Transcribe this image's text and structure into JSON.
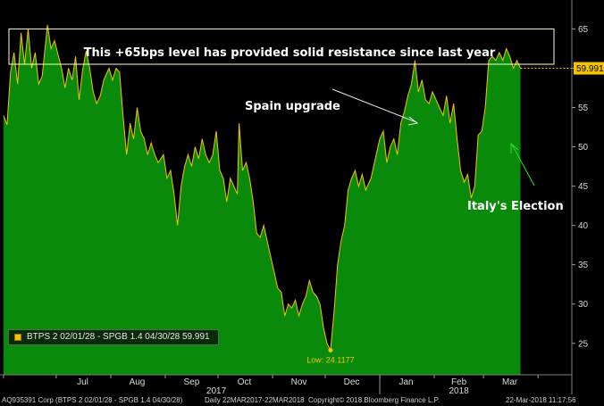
{
  "chart_data": {
    "type": "area",
    "series": [
      {
        "name": "BTPS 2 02/01/28 - SPGB 1.4 04/30/28",
        "last_value": "59.991",
        "color": "#f5c400",
        "fill": "#0a8a0a",
        "points": [
          [
            "2017-06-01",
            54
          ],
          [
            "2017-06-03",
            52.8
          ],
          [
            "2017-06-05",
            59.5
          ],
          [
            "2017-06-07",
            62
          ],
          [
            "2017-06-09",
            58
          ],
          [
            "2017-06-11",
            64.5
          ],
          [
            "2017-06-13",
            60.5
          ],
          [
            "2017-06-15",
            65
          ],
          [
            "2017-06-17",
            60
          ],
          [
            "2017-06-19",
            62
          ],
          [
            "2017-06-21",
            58
          ],
          [
            "2017-06-23",
            59
          ],
          [
            "2017-06-26",
            65.5
          ],
          [
            "2017-06-28",
            62.5
          ],
          [
            "2017-06-30",
            63.5
          ],
          [
            "2017-07-04",
            60
          ],
          [
            "2017-07-06",
            57.5
          ],
          [
            "2017-07-08",
            60
          ],
          [
            "2017-07-10",
            58.5
          ],
          [
            "2017-07-12",
            61.5
          ],
          [
            "2017-07-14",
            56
          ],
          [
            "2017-07-16",
            59.8
          ],
          [
            "2017-07-18",
            62.2
          ],
          [
            "2017-07-20",
            60
          ],
          [
            "2017-07-22",
            57
          ],
          [
            "2017-07-24",
            55.5
          ],
          [
            "2017-07-26",
            56.5
          ],
          [
            "2017-07-28",
            58.5
          ],
          [
            "2017-07-31",
            60
          ],
          [
            "2017-08-02",
            58.5
          ],
          [
            "2017-08-04",
            60
          ],
          [
            "2017-08-06",
            59.5
          ],
          [
            "2017-08-08",
            54
          ],
          [
            "2017-08-10",
            49
          ],
          [
            "2017-08-12",
            53
          ],
          [
            "2017-08-14",
            51
          ],
          [
            "2017-08-16",
            55
          ],
          [
            "2017-08-18",
            52
          ],
          [
            "2017-08-20",
            51
          ],
          [
            "2017-08-22",
            49
          ],
          [
            "2017-08-24",
            50.5
          ],
          [
            "2017-08-26",
            49
          ],
          [
            "2017-08-28",
            48
          ],
          [
            "2017-08-31",
            49
          ],
          [
            "2017-09-02",
            46
          ],
          [
            "2017-09-04",
            47
          ],
          [
            "2017-09-06",
            44
          ],
          [
            "2017-09-08",
            40
          ],
          [
            "2017-09-10",
            45
          ],
          [
            "2017-09-12",
            47.5
          ],
          [
            "2017-09-14",
            49
          ],
          [
            "2017-09-16",
            47.5
          ],
          [
            "2017-09-18",
            50
          ],
          [
            "2017-09-20",
            48.5
          ],
          [
            "2017-09-22",
            51
          ],
          [
            "2017-09-24",
            49
          ],
          [
            "2017-09-26",
            48
          ],
          [
            "2017-09-28",
            49
          ],
          [
            "2017-09-30",
            52
          ],
          [
            "2017-10-02",
            47
          ],
          [
            "2017-10-04",
            46
          ],
          [
            "2017-10-06",
            43
          ],
          [
            "2017-10-08",
            46
          ],
          [
            "2017-10-10",
            45
          ],
          [
            "2017-10-12",
            44
          ],
          [
            "2017-10-13",
            53
          ],
          [
            "2017-10-15",
            47
          ],
          [
            "2017-10-17",
            48
          ],
          [
            "2017-10-19",
            46
          ],
          [
            "2017-10-21",
            43
          ],
          [
            "2017-10-23",
            39
          ],
          [
            "2017-10-25",
            38.5
          ],
          [
            "2017-10-27",
            40
          ],
          [
            "2017-10-29",
            38
          ],
          [
            "2017-10-31",
            36
          ],
          [
            "2017-11-02",
            34
          ],
          [
            "2017-11-04",
            32
          ],
          [
            "2017-11-06",
            31.5
          ],
          [
            "2017-11-08",
            28.5
          ],
          [
            "2017-11-10",
            30
          ],
          [
            "2017-11-12",
            29.5
          ],
          [
            "2017-11-14",
            30.5
          ],
          [
            "2017-11-16",
            28.5
          ],
          [
            "2017-11-18",
            30
          ],
          [
            "2017-11-20",
            31
          ],
          [
            "2017-11-22",
            33
          ],
          [
            "2017-11-24",
            31.5
          ],
          [
            "2017-11-26",
            31
          ],
          [
            "2017-11-28",
            30
          ],
          [
            "2017-11-30",
            27
          ],
          [
            "2017-12-02",
            25
          ],
          [
            "2017-12-04",
            24.1177
          ],
          [
            "2017-12-06",
            29
          ],
          [
            "2017-12-08",
            35
          ],
          [
            "2017-12-10",
            38
          ],
          [
            "2017-12-12",
            40
          ],
          [
            "2017-12-14",
            44.5
          ],
          [
            "2017-12-16",
            46
          ],
          [
            "2017-12-18",
            47
          ],
          [
            "2017-12-20",
            45
          ],
          [
            "2017-12-22",
            46.5
          ],
          [
            "2017-12-24",
            44.5
          ],
          [
            "2017-12-27",
            46
          ],
          [
            "2017-12-29",
            48
          ],
          [
            "2018-01-01",
            51
          ],
          [
            "2018-01-03",
            52
          ],
          [
            "2018-01-05",
            48
          ],
          [
            "2018-01-07",
            50
          ],
          [
            "2018-01-09",
            51
          ],
          [
            "2018-01-11",
            49
          ],
          [
            "2018-01-13",
            53
          ],
          [
            "2018-01-15",
            54.5
          ],
          [
            "2018-01-17",
            56.5
          ],
          [
            "2018-01-19",
            58
          ],
          [
            "2018-01-21",
            61
          ],
          [
            "2018-01-23",
            57
          ],
          [
            "2018-01-25",
            58.5
          ],
          [
            "2018-01-27",
            56
          ],
          [
            "2018-01-29",
            55.5
          ],
          [
            "2018-01-31",
            57
          ],
          [
            "2018-02-02",
            56
          ],
          [
            "2018-02-04",
            55
          ],
          [
            "2018-02-06",
            54
          ],
          [
            "2018-02-08",
            56.5
          ],
          [
            "2018-02-10",
            53
          ],
          [
            "2018-02-12",
            55.5
          ],
          [
            "2018-02-14",
            51
          ],
          [
            "2018-02-16",
            47
          ],
          [
            "2018-02-18",
            45.5
          ],
          [
            "2018-02-20",
            46.5
          ],
          [
            "2018-02-22",
            43.5
          ],
          [
            "2018-02-24",
            45
          ],
          [
            "2018-02-26",
            51.5
          ],
          [
            "2018-02-28",
            52
          ],
          [
            "2018-03-02",
            55
          ],
          [
            "2018-03-04",
            61
          ],
          [
            "2018-03-06",
            61.5
          ],
          [
            "2018-03-08",
            61
          ],
          [
            "2018-03-10",
            62
          ],
          [
            "2018-03-12",
            61
          ],
          [
            "2018-03-14",
            62.5
          ],
          [
            "2018-03-16",
            61.5
          ],
          [
            "2018-03-18",
            60
          ],
          [
            "2018-03-20",
            61
          ],
          [
            "2018-03-22",
            59.991
          ]
        ]
      }
    ],
    "ylim": [
      21,
      68
    ],
    "yticks": [
      25,
      30,
      35,
      40,
      45,
      50,
      55,
      60,
      65
    ],
    "xlim": [
      "2017-05-30",
      "2018-04-05"
    ],
    "month_ticks": [
      [
        "Jul",
        "2017-07-16"
      ],
      [
        "Aug",
        "2017-08-16"
      ],
      [
        "Sep",
        "2017-09-16"
      ],
      [
        "Oct",
        "2017-10-16"
      ],
      [
        "Nov",
        "2017-11-16"
      ],
      [
        "Dec",
        "2017-12-16"
      ],
      [
        "Jan",
        "2018-01-16"
      ],
      [
        "Feb",
        "2018-02-15"
      ],
      [
        "Mar",
        "2018-03-16"
      ]
    ],
    "year_labels": [
      [
        "2017",
        "2017-09-30"
      ],
      [
        "2018",
        "2018-02-15"
      ]
    ],
    "year_separator": "2018-01-01",
    "grid": false,
    "annotations": {
      "resistance": "This +65bps level has provided solid resistance since last year",
      "spain": "Spain upgrade",
      "italy": "Italy's Election",
      "low_label": "Low: 24.1177",
      "low_point": [
        "2017-12-04",
        24.1177
      ],
      "resistance_band": [
        60.5,
        65
      ]
    },
    "last_value_label": "59.991"
  },
  "legend": {
    "text": "BTPS 2 02/01/28 - SPGB 1.4 04/30/28 59.991"
  },
  "footer": {
    "ticker": "AQ935391 Corp  (BTPS 2 02/01/28 - SPGB 1.4 04/30/28)",
    "range": "Daily  22MAR2017-22MAR2018",
    "copyright": "Copyright© 2018 Bloomberg Finance L.P.",
    "timestamp": "22-Mar-2018 11:17:56"
  }
}
